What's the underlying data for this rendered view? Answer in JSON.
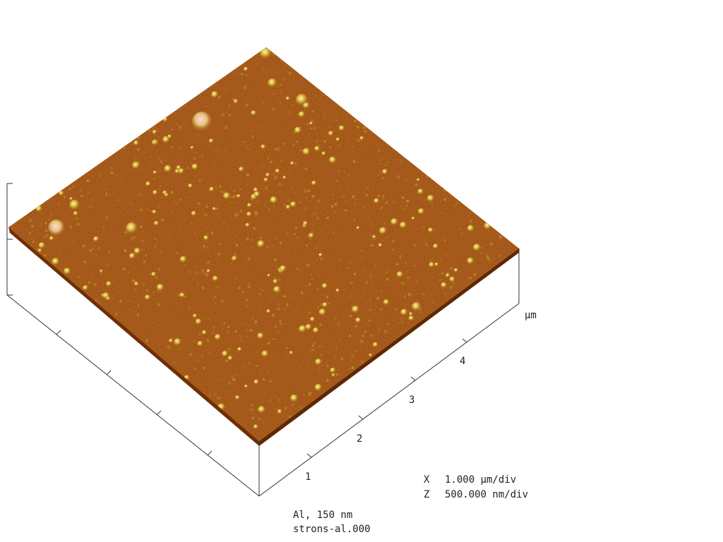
{
  "axis": {
    "unit": "µm",
    "ticks": [
      "1",
      "2",
      "3",
      "4"
    ]
  },
  "scale": {
    "x_key": "X",
    "x_value": "1.000 µm/div",
    "z_key": "Z",
    "z_value": "500.000 nm/div"
  },
  "caption": {
    "line1": "Al, 150 nm",
    "line2": "strons-al.000"
  },
  "colors": {
    "surface_base": "#9c4a12",
    "surface_dark": "#7a3508",
    "grain_light": "#c9a52e",
    "peak": "#e8d890",
    "highlight": "#f4c0c8"
  }
}
